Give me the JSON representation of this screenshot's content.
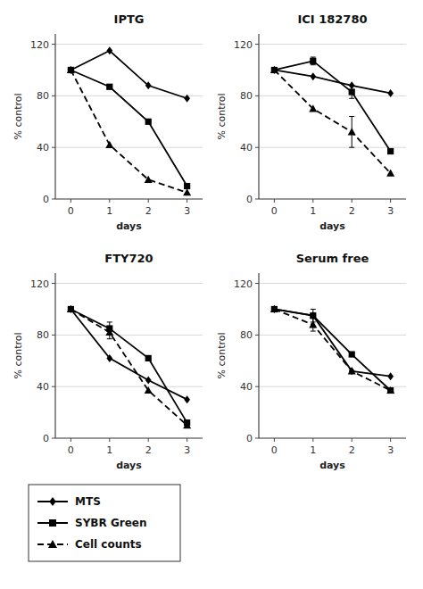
{
  "chart_data": [
    {
      "type": "line",
      "title": "IPTG",
      "xlabel": "days",
      "ylabel": "% control",
      "x": [
        0,
        1,
        2,
        3
      ],
      "xlim": [
        -0.4,
        3.4
      ],
      "xticks": [
        0,
        1,
        2,
        3
      ],
      "ylim": [
        0,
        128
      ],
      "yticks": [
        0,
        40,
        80,
        120
      ],
      "grid": true,
      "series": [
        {
          "name": "MTS",
          "color": "#000000",
          "marker": "diamond",
          "line_style": "solid",
          "values": [
            100,
            115,
            88,
            78
          ],
          "errors": [
            0,
            0,
            0,
            0
          ]
        },
        {
          "name": "SYBR Green",
          "color": "#000000",
          "marker": "square",
          "line_style": "solid",
          "values": [
            100,
            87,
            60,
            10
          ],
          "errors": [
            0,
            0,
            0,
            0
          ]
        },
        {
          "name": "Cell counts",
          "color": "#000000",
          "marker": "triangle",
          "line_style": "dashed",
          "values": [
            100,
            42,
            15,
            5
          ],
          "errors": [
            0,
            0,
            0,
            0
          ]
        }
      ]
    },
    {
      "type": "line",
      "title": "ICI 182780",
      "xlabel": "days",
      "ylabel": "% control",
      "x": [
        0,
        1,
        2,
        3
      ],
      "xlim": [
        -0.4,
        3.4
      ],
      "xticks": [
        0,
        1,
        2,
        3
      ],
      "ylim": [
        0,
        128
      ],
      "yticks": [
        0,
        40,
        80,
        120
      ],
      "grid": true,
      "series": [
        {
          "name": "MTS",
          "color": "#000000",
          "marker": "diamond",
          "line_style": "solid",
          "values": [
            100,
            95,
            88,
            82
          ],
          "errors": [
            0,
            0,
            0,
            0
          ]
        },
        {
          "name": "SYBR Green",
          "color": "#000000",
          "marker": "square",
          "line_style": "solid",
          "values": [
            100,
            107,
            83,
            37
          ],
          "errors": [
            0,
            3,
            5,
            0
          ]
        },
        {
          "name": "Cell counts",
          "color": "#000000",
          "marker": "triangle",
          "line_style": "dashed",
          "values": [
            100,
            70,
            52,
            20
          ],
          "errors": [
            0,
            0,
            12,
            0
          ]
        }
      ]
    },
    {
      "type": "line",
      "title": "FTY720",
      "xlabel": "days",
      "ylabel": "% control",
      "x": [
        0,
        1,
        2,
        3
      ],
      "xlim": [
        -0.4,
        3.4
      ],
      "xticks": [
        0,
        1,
        2,
        3
      ],
      "ylim": [
        0,
        128
      ],
      "yticks": [
        0,
        40,
        80,
        120
      ],
      "grid": true,
      "legend": "bottom",
      "series": [
        {
          "name": "MTS",
          "color": "#000000",
          "marker": "diamond",
          "line_style": "solid",
          "values": [
            100,
            62,
            45,
            30
          ],
          "errors": [
            0,
            0,
            0,
            0
          ]
        },
        {
          "name": "SYBR Green",
          "color": "#000000",
          "marker": "square",
          "line_style": "solid",
          "values": [
            100,
            85,
            62,
            12
          ],
          "errors": [
            0,
            5,
            0,
            0
          ]
        },
        {
          "name": "Cell counts",
          "color": "#000000",
          "marker": "triangle",
          "line_style": "dashed",
          "values": [
            100,
            82,
            37,
            10
          ],
          "errors": [
            0,
            5,
            0,
            0
          ]
        }
      ]
    },
    {
      "type": "line",
      "title": "Serum free",
      "xlabel": "days",
      "ylabel": "% control",
      "x": [
        0,
        1,
        2,
        3
      ],
      "xlim": [
        -0.4,
        3.4
      ],
      "xticks": [
        0,
        1,
        2,
        3
      ],
      "ylim": [
        0,
        128
      ],
      "yticks": [
        0,
        40,
        80,
        120
      ],
      "grid": true,
      "series": [
        {
          "name": "MTS",
          "color": "#000000",
          "marker": "diamond",
          "line_style": "solid",
          "values": [
            100,
            95,
            52,
            48
          ],
          "errors": [
            0,
            0,
            0,
            0
          ]
        },
        {
          "name": "SYBR Green",
          "color": "#000000",
          "marker": "square",
          "line_style": "solid",
          "values": [
            100,
            95,
            65,
            37
          ],
          "errors": [
            0,
            5,
            0,
            0
          ]
        },
        {
          "name": "Cell counts",
          "color": "#000000",
          "marker": "triangle",
          "line_style": "dashed",
          "values": [
            100,
            88,
            52,
            37
          ],
          "errors": [
            0,
            5,
            0,
            0
          ]
        }
      ]
    }
  ]
}
